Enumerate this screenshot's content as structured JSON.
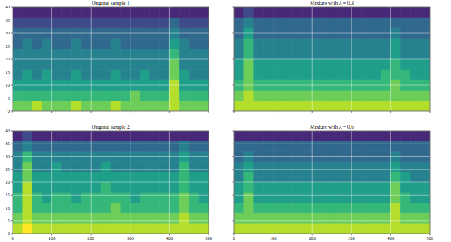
{
  "chart_data": [
    {
      "type": "heatmap",
      "title": "Original sample 1",
      "xlim": [
        0,
        500
      ],
      "ylim": [
        0,
        40
      ],
      "xticks": [
        0,
        100,
        200,
        300,
        400,
        500
      ],
      "yticks": [
        0,
        5,
        10,
        15,
        20,
        25,
        30,
        35,
        40
      ],
      "grid": true,
      "tick_labels": "y",
      "zlim": [
        0,
        9
      ],
      "x_edges": [
        0,
        25,
        50,
        75,
        100,
        125,
        150,
        175,
        200,
        225,
        250,
        275,
        300,
        325,
        350,
        375,
        400,
        425,
        450,
        475,
        500
      ],
      "y_edges": [
        0,
        4,
        8,
        12,
        16,
        20,
        24,
        28,
        32,
        36,
        40
      ],
      "cells": [
        [
          7,
          7,
          8,
          7,
          7,
          7,
          8,
          7,
          7,
          7,
          8,
          7,
          7,
          7,
          7,
          7,
          8,
          7,
          7,
          7
        ],
        [
          6,
          6,
          6,
          6,
          6,
          6,
          6,
          6,
          6,
          6,
          6,
          6,
          7,
          6,
          6,
          6,
          8,
          6,
          6,
          6
        ],
        [
          5,
          5,
          5,
          5,
          5,
          5,
          5,
          5,
          5,
          5,
          5,
          5,
          5,
          5,
          5,
          5,
          8,
          5,
          5,
          5
        ],
        [
          4,
          5,
          4,
          5,
          4,
          4,
          5,
          4,
          4,
          4,
          5,
          4,
          4,
          5,
          4,
          4,
          7,
          5,
          4,
          4
        ],
        [
          4,
          4,
          4,
          4,
          4,
          4,
          4,
          4,
          4,
          4,
          4,
          4,
          4,
          4,
          4,
          4,
          7,
          4,
          4,
          4
        ],
        [
          4,
          4,
          4,
          4,
          4,
          4,
          4,
          4,
          4,
          4,
          4,
          4,
          4,
          4,
          4,
          4,
          6,
          4,
          4,
          4
        ],
        [
          3,
          4,
          3,
          4,
          3,
          3,
          4,
          3,
          3,
          3,
          4,
          3,
          3,
          3,
          3,
          3,
          5,
          4,
          3,
          3
        ],
        [
          3,
          3,
          3,
          3,
          3,
          3,
          3,
          3,
          3,
          3,
          3,
          3,
          3,
          3,
          3,
          3,
          4,
          3,
          3,
          3
        ],
        [
          2,
          2,
          2,
          2,
          2,
          2,
          2,
          2,
          2,
          2,
          2,
          2,
          2,
          2,
          2,
          2,
          3,
          2,
          2,
          2
        ],
        [
          1,
          1,
          1,
          1,
          1,
          1,
          1,
          1,
          1,
          1,
          1,
          1,
          1,
          1,
          1,
          1,
          1,
          1,
          1,
          1
        ]
      ]
    },
    {
      "type": "heatmap",
      "title": "Mixture with λ = 0.3",
      "xlim": [
        0,
        500
      ],
      "ylim": [
        0,
        40
      ],
      "xticks": [
        0,
        100,
        200,
        300,
        400,
        500
      ],
      "yticks": [
        0,
        5,
        10,
        15,
        20,
        25,
        30,
        35,
        40
      ],
      "grid": true,
      "tick_labels": false,
      "zlim": [
        0,
        9
      ],
      "x_edges": [
        0,
        25,
        50,
        75,
        100,
        125,
        150,
        175,
        200,
        225,
        250,
        275,
        300,
        325,
        350,
        375,
        400,
        425,
        450,
        475,
        500
      ],
      "y_edges": [
        0,
        4,
        8,
        12,
        16,
        20,
        24,
        28,
        32,
        36,
        40
      ],
      "cells": [
        [
          8,
          8,
          8,
          8,
          8,
          8,
          8,
          8,
          8,
          8,
          8,
          8,
          8,
          8,
          8,
          8,
          8,
          8,
          8,
          8
        ],
        [
          7,
          8,
          7,
          7,
          7,
          7,
          7,
          7,
          7,
          7,
          7,
          7,
          7,
          7,
          7,
          7,
          7,
          7,
          7,
          7
        ],
        [
          6,
          7,
          6,
          6,
          6,
          6,
          6,
          6,
          6,
          6,
          6,
          6,
          6,
          6,
          6,
          6,
          7,
          6,
          6,
          6
        ],
        [
          5,
          7,
          5,
          5,
          5,
          5,
          5,
          5,
          5,
          5,
          5,
          5,
          5,
          5,
          5,
          6,
          6,
          6,
          5,
          5
        ],
        [
          5,
          7,
          5,
          5,
          5,
          5,
          5,
          5,
          5,
          5,
          5,
          5,
          5,
          5,
          5,
          5,
          6,
          5,
          5,
          5
        ],
        [
          4,
          6,
          4,
          4,
          4,
          4,
          4,
          4,
          4,
          4,
          4,
          4,
          4,
          4,
          4,
          4,
          5,
          4,
          4,
          4
        ],
        [
          4,
          6,
          4,
          4,
          4,
          4,
          4,
          4,
          4,
          4,
          4,
          4,
          4,
          4,
          4,
          4,
          5,
          4,
          4,
          4
        ],
        [
          3,
          5,
          3,
          3,
          3,
          3,
          3,
          3,
          3,
          3,
          3,
          3,
          3,
          3,
          3,
          3,
          4,
          3,
          3,
          3
        ],
        [
          3,
          4,
          3,
          3,
          3,
          3,
          3,
          3,
          3,
          3,
          3,
          3,
          3,
          3,
          3,
          3,
          3,
          3,
          3,
          3
        ],
        [
          1,
          2,
          1,
          1,
          1,
          1,
          1,
          1,
          1,
          1,
          1,
          1,
          1,
          1,
          1,
          1,
          1,
          1,
          1,
          1
        ]
      ]
    },
    {
      "type": "heatmap",
      "title": "Original sample 2",
      "xlim": [
        0,
        500
      ],
      "ylim": [
        0,
        40
      ],
      "xticks": [
        0,
        100,
        200,
        300,
        400,
        500
      ],
      "yticks": [
        0,
        5,
        10,
        15,
        20,
        25,
        30,
        35,
        40
      ],
      "grid": true,
      "tick_labels": true,
      "zlim": [
        0,
        9
      ],
      "x_edges": [
        0,
        25,
        50,
        75,
        100,
        125,
        150,
        175,
        200,
        225,
        250,
        275,
        300,
        325,
        350,
        375,
        400,
        425,
        450,
        475,
        500
      ],
      "y_edges": [
        0,
        4,
        8,
        12,
        16,
        20,
        24,
        28,
        32,
        36,
        40
      ],
      "cells": [
        [
          8,
          9,
          8,
          8,
          8,
          8,
          8,
          8,
          8,
          8,
          8,
          8,
          8,
          8,
          8,
          8,
          8,
          8,
          8,
          8
        ],
        [
          7,
          8,
          7,
          7,
          7,
          7,
          7,
          7,
          7,
          7,
          7,
          7,
          7,
          7,
          7,
          7,
          7,
          8,
          7,
          7
        ],
        [
          6,
          8,
          6,
          6,
          6,
          6,
          6,
          6,
          6,
          6,
          7,
          6,
          6,
          6,
          6,
          6,
          6,
          7,
          6,
          6
        ],
        [
          6,
          8,
          6,
          5,
          6,
          6,
          5,
          6,
          6,
          6,
          6,
          6,
          5,
          6,
          6,
          6,
          6,
          7,
          6,
          5
        ],
        [
          5,
          8,
          5,
          5,
          5,
          5,
          5,
          5,
          5,
          6,
          5,
          5,
          5,
          5,
          5,
          5,
          5,
          6,
          5,
          5
        ],
        [
          5,
          7,
          5,
          5,
          5,
          5,
          5,
          5,
          5,
          5,
          5,
          5,
          5,
          5,
          5,
          5,
          5,
          6,
          5,
          5
        ],
        [
          4,
          7,
          4,
          4,
          5,
          4,
          4,
          4,
          4,
          5,
          4,
          4,
          4,
          4,
          4,
          4,
          4,
          6,
          4,
          4
        ],
        [
          4,
          6,
          4,
          4,
          4,
          4,
          4,
          4,
          4,
          4,
          4,
          4,
          4,
          4,
          4,
          4,
          4,
          5,
          4,
          4
        ],
        [
          3,
          4,
          3,
          3,
          3,
          3,
          3,
          3,
          3,
          3,
          3,
          3,
          3,
          3,
          3,
          3,
          3,
          4,
          3,
          3
        ],
        [
          1,
          2,
          1,
          1,
          1,
          1,
          1,
          1,
          1,
          1,
          1,
          1,
          1,
          1,
          1,
          1,
          1,
          1,
          1,
          1
        ]
      ]
    },
    {
      "type": "heatmap",
      "title": "Mixture with λ = 0.6",
      "xlim": [
        0,
        500
      ],
      "ylim": [
        0,
        40
      ],
      "xticks": [
        0,
        100,
        200,
        300,
        400,
        500
      ],
      "yticks": [
        0,
        5,
        10,
        15,
        20,
        25,
        30,
        35,
        40
      ],
      "grid": true,
      "tick_labels": "x",
      "zlim": [
        0,
        9
      ],
      "x_edges": [
        0,
        25,
        50,
        75,
        100,
        125,
        150,
        175,
        200,
        225,
        250,
        275,
        300,
        325,
        350,
        375,
        400,
        425,
        450,
        475,
        500
      ],
      "y_edges": [
        0,
        4,
        8,
        12,
        16,
        20,
        24,
        28,
        32,
        36,
        40
      ],
      "cells": [
        [
          8,
          8,
          8,
          8,
          8,
          8,
          8,
          8,
          8,
          8,
          8,
          8,
          8,
          8,
          8,
          8,
          8,
          8,
          8,
          8
        ],
        [
          7,
          7,
          7,
          7,
          7,
          7,
          7,
          7,
          7,
          7,
          7,
          7,
          7,
          7,
          7,
          7,
          8,
          7,
          7,
          7
        ],
        [
          6,
          7,
          6,
          6,
          6,
          6,
          6,
          6,
          6,
          6,
          6,
          6,
          6,
          6,
          6,
          6,
          8,
          6,
          6,
          6
        ],
        [
          5,
          7,
          5,
          5,
          5,
          5,
          5,
          5,
          5,
          5,
          5,
          5,
          5,
          5,
          5,
          5,
          7,
          6,
          5,
          5
        ],
        [
          5,
          6,
          5,
          5,
          5,
          5,
          5,
          5,
          5,
          5,
          5,
          5,
          5,
          5,
          5,
          5,
          7,
          5,
          5,
          5
        ],
        [
          4,
          6,
          4,
          4,
          4,
          4,
          4,
          4,
          4,
          4,
          4,
          4,
          4,
          4,
          4,
          4,
          6,
          5,
          4,
          4
        ],
        [
          4,
          5,
          4,
          4,
          4,
          4,
          4,
          4,
          4,
          4,
          4,
          4,
          4,
          4,
          4,
          4,
          5,
          4,
          4,
          4
        ],
        [
          3,
          4,
          3,
          3,
          3,
          3,
          3,
          3,
          3,
          3,
          3,
          3,
          3,
          3,
          3,
          3,
          4,
          3,
          3,
          3
        ],
        [
          3,
          3,
          3,
          3,
          3,
          3,
          3,
          3,
          3,
          3,
          3,
          3,
          3,
          3,
          3,
          3,
          3,
          3,
          3,
          3
        ],
        [
          1,
          1,
          1,
          1,
          1,
          1,
          1,
          1,
          1,
          1,
          1,
          1,
          1,
          1,
          1,
          1,
          1,
          1,
          1,
          1
        ]
      ]
    }
  ]
}
